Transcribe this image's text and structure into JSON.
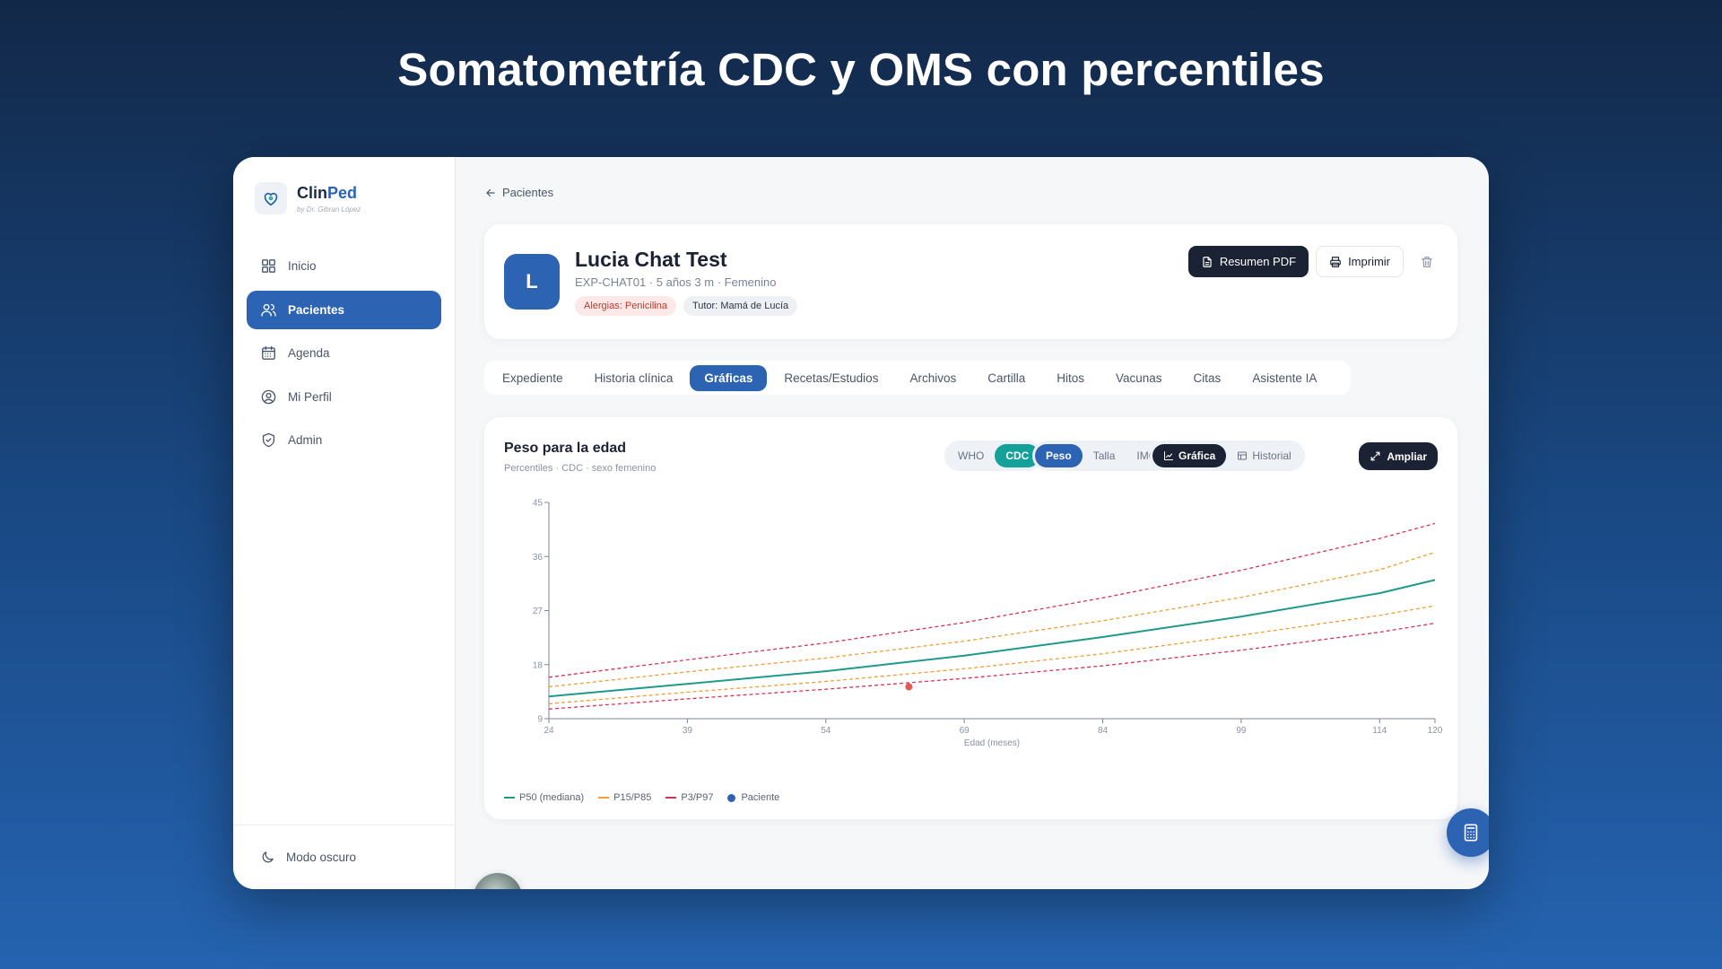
{
  "headline": "Somatometría CDC y OMS con percentiles",
  "brand": {
    "name_prefix": "Clin",
    "name_accent": "Ped",
    "byline": "by Dr. Gibran López"
  },
  "sidebar": {
    "items": [
      {
        "label": "Inicio",
        "icon": "grid-icon",
        "active": false
      },
      {
        "label": "Pacientes",
        "icon": "users-icon",
        "active": true
      },
      {
        "label": "Agenda",
        "icon": "calendar-icon",
        "active": false
      },
      {
        "label": "Mi Perfil",
        "icon": "user-circle-icon",
        "active": false
      },
      {
        "label": "Admin",
        "icon": "shield-icon",
        "active": false
      }
    ],
    "footer": {
      "label": "Modo oscuro",
      "icon": "moon-icon"
    }
  },
  "breadcrumb": {
    "label": "Pacientes"
  },
  "patient": {
    "initial": "L",
    "name": "Lucia Chat Test",
    "meta": "EXP-CHAT01 · 5 años 3 m · Femenino",
    "allergy": "Alergias: Penicilina",
    "tutor": "Tutor: Mamá de Lucía"
  },
  "actions": {
    "pdf": "Resumen PDF",
    "print": "Imprimir"
  },
  "tabs": [
    {
      "label": "Expediente",
      "active": false
    },
    {
      "label": "Historia clínica",
      "active": false
    },
    {
      "label": "Gráficas",
      "active": true
    },
    {
      "label": "Recetas/Estudios",
      "active": false
    },
    {
      "label": "Archivos",
      "active": false
    },
    {
      "label": "Cartilla",
      "active": false
    },
    {
      "label": "Hitos",
      "active": false
    },
    {
      "label": "Vacunas",
      "active": false
    },
    {
      "label": "Citas",
      "active": false
    },
    {
      "label": "Asistente IA",
      "active": false
    }
  ],
  "chart_panel": {
    "title": "Peso para la edad",
    "subtitle": "Percentiles · CDC · sexo femenino",
    "source_toggle": {
      "who": "WHO",
      "cdc": "CDC",
      "selected": "CDC"
    },
    "measure_toggle": {
      "peso": "Peso",
      "talla": "Talla",
      "imc": "IMC",
      "selected": "Peso"
    },
    "view_toggle": {
      "grafica": "Gráfica",
      "historial": "Historial",
      "selected": "Gráfica"
    },
    "expand": "Ampliar"
  },
  "chart_data": {
    "type": "line",
    "title": "",
    "xlabel": "Edad (meses)",
    "ylabel": "",
    "xlim": [
      24,
      120
    ],
    "ylim": [
      9,
      45
    ],
    "x_ticks": [
      24,
      39,
      54,
      69,
      84,
      99,
      114,
      120
    ],
    "y_ticks": [
      9,
      18,
      27,
      36,
      45
    ],
    "x": [
      24,
      39,
      54,
      69,
      84,
      99,
      114,
      120
    ],
    "series": [
      {
        "name": "P97",
        "style": "dashed",
        "color": "#d6335a",
        "values": [
          15.9,
          18.8,
          21.6,
          25.0,
          29.1,
          33.7,
          39.0,
          41.5
        ]
      },
      {
        "name": "P85",
        "style": "dashed",
        "color": "#f29d38",
        "values": [
          14.3,
          16.8,
          19.1,
          21.9,
          25.3,
          29.2,
          33.8,
          36.7
        ]
      },
      {
        "name": "P50",
        "style": "solid",
        "color": "#1e9a8a",
        "values": [
          12.7,
          14.8,
          16.9,
          19.5,
          22.6,
          26.0,
          29.9,
          32.1
        ]
      },
      {
        "name": "P15",
        "style": "dashed",
        "color": "#f29d38",
        "values": [
          11.5,
          13.4,
          15.2,
          17.3,
          19.8,
          22.9,
          26.2,
          27.8
        ]
      },
      {
        "name": "P3",
        "style": "dashed",
        "color": "#d6335a",
        "values": [
          10.6,
          12.3,
          13.9,
          15.7,
          17.8,
          20.4,
          23.4,
          24.9
        ]
      }
    ],
    "patient_points": [
      {
        "x": 63,
        "y": 14.3,
        "color": "#e05a4f"
      }
    ],
    "legend": [
      {
        "label": "P50 (mediana)",
        "color": "#1e9a8a",
        "kind": "line"
      },
      {
        "label": "P15/P85",
        "color": "#f29d38",
        "kind": "line"
      },
      {
        "label": "P3/P97",
        "color": "#d6335a",
        "kind": "line"
      },
      {
        "label": "Paciente",
        "color": "#2c63b3",
        "kind": "dot"
      }
    ],
    "grid": false,
    "legend_position": "bottom-left"
  }
}
